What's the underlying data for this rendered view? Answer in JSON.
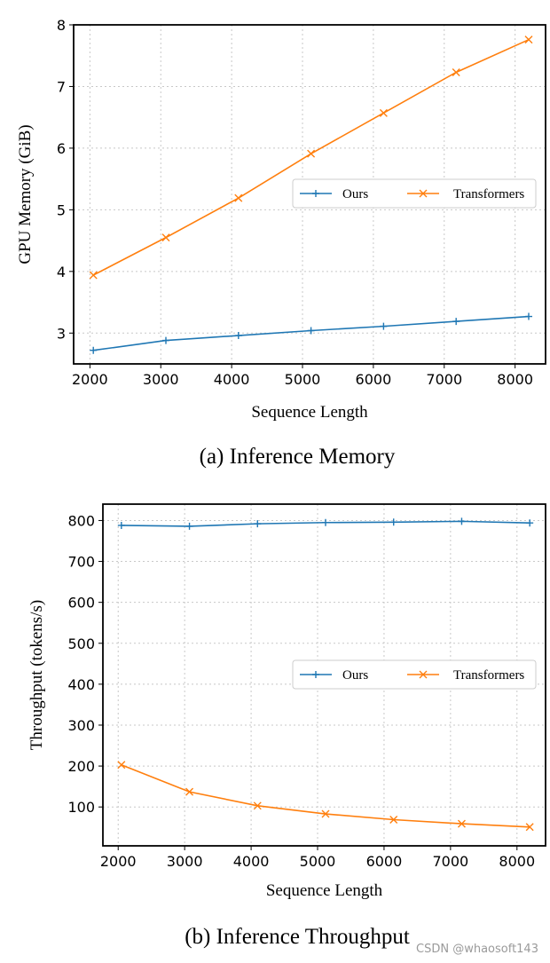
{
  "colors": {
    "ours": "#1f77b4",
    "transformers": "#ff7f0e",
    "grid": "#c8c8c8"
  },
  "chart_data": [
    {
      "type": "line",
      "caption": "(a) Inference Memory",
      "xlabel": "Sequence Length",
      "ylabel": "GPU Memory (GiB)",
      "xlim": [
        1770,
        8430
      ],
      "ylim": [
        2.5,
        8.0
      ],
      "xticks": [
        2000,
        3000,
        4000,
        5000,
        6000,
        7000,
        8000
      ],
      "xtick_labels": [
        "2000",
        "3000",
        "4000",
        "5000",
        "6000",
        "7000",
        "8000"
      ],
      "yticks": [
        3,
        4,
        5,
        6,
        7,
        8
      ],
      "ytick_labels": [
        "3",
        "4",
        "5",
        "6",
        "7",
        "8"
      ],
      "grid": true,
      "legend_position": "center-right",
      "x": [
        2048,
        3072,
        4096,
        5120,
        6144,
        7168,
        8192
      ],
      "series": [
        {
          "name": "Ours",
          "marker": "+",
          "values": [
            2.72,
            2.88,
            2.96,
            3.04,
            3.11,
            3.19,
            3.27
          ]
        },
        {
          "name": "Transformers",
          "marker": "x",
          "values": [
            3.94,
            4.55,
            5.19,
            5.91,
            6.57,
            7.23,
            7.76
          ]
        }
      ]
    },
    {
      "type": "line",
      "caption": "(b) Inference Throughput",
      "xlabel": "Sequence Length",
      "ylabel": "Throughput (tokens/s)",
      "xlim": [
        1770,
        8430
      ],
      "ylim": [
        5,
        840
      ],
      "xticks": [
        2000,
        3000,
        4000,
        5000,
        6000,
        7000,
        8000
      ],
      "xtick_labels": [
        "2000",
        "3000",
        "4000",
        "5000",
        "6000",
        "7000",
        "8000"
      ],
      "yticks": [
        100,
        200,
        300,
        400,
        500,
        600,
        700,
        800
      ],
      "ytick_labels": [
        "100",
        "200",
        "300",
        "400",
        "500",
        "600",
        "700",
        "800"
      ],
      "grid": true,
      "legend_position": "center-right",
      "x": [
        2048,
        3072,
        4096,
        5120,
        6144,
        7168,
        8192
      ],
      "series": [
        {
          "name": "Ours",
          "marker": "+",
          "values": [
            788,
            786,
            792,
            795,
            796,
            798,
            794
          ]
        },
        {
          "name": "Transformers",
          "marker": "x",
          "values": [
            203,
            137,
            103,
            83,
            69,
            59,
            51
          ]
        }
      ]
    }
  ],
  "watermark": "CSDN @whaosoft143"
}
